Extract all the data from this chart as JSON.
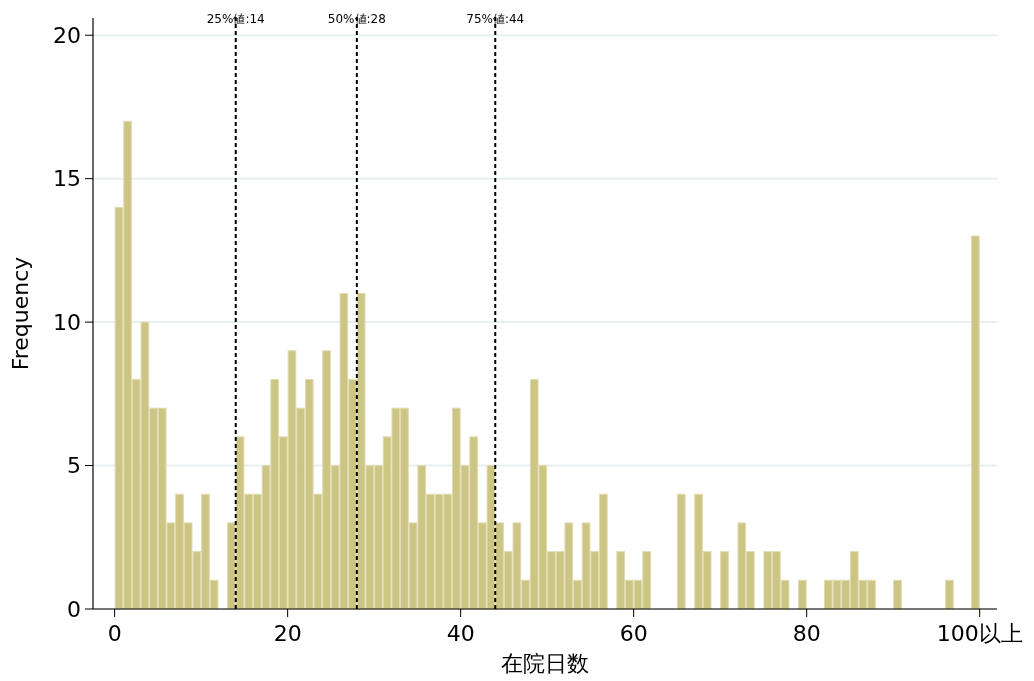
{
  "chart_data": {
    "type": "histogram",
    "xlabel": "在院日数",
    "ylabel": "Frequency",
    "bins": [
      0,
      1,
      2,
      3,
      4,
      5,
      6,
      7,
      8,
      9,
      10,
      11,
      12,
      13,
      14,
      15,
      16,
      17,
      18,
      19,
      20,
      21,
      22,
      23,
      24,
      25,
      26,
      27,
      28,
      29,
      30,
      31,
      32,
      33,
      34,
      35,
      36,
      37,
      38,
      39,
      40,
      41,
      42,
      43,
      44,
      45,
      46,
      47,
      48,
      49,
      50,
      51,
      52,
      53,
      54,
      55,
      56,
      57,
      58,
      59,
      60,
      61,
      62,
      63,
      64,
      65,
      66,
      67,
      68,
      69,
      70,
      71,
      72,
      73,
      74,
      75,
      76,
      77,
      78,
      79,
      80,
      81,
      82,
      83,
      84,
      85,
      86,
      87,
      88,
      89,
      90,
      91,
      92,
      93,
      94,
      95,
      96,
      97,
      98,
      99,
      100
    ],
    "values": [
      14,
      17,
      8,
      10,
      7,
      7,
      3,
      4,
      3,
      2,
      4,
      1,
      0,
      3,
      6,
      4,
      4,
      5,
      8,
      6,
      9,
      7,
      8,
      4,
      9,
      5,
      11,
      8,
      11,
      5,
      5,
      6,
      7,
      7,
      3,
      5,
      4,
      4,
      4,
      7,
      5,
      6,
      3,
      5,
      3,
      2,
      3,
      1,
      8,
      5,
      2,
      2,
      3,
      1,
      3,
      2,
      4,
      0,
      2,
      1,
      1,
      2,
      0,
      0,
      0,
      4,
      0,
      4,
      2,
      0,
      2,
      0,
      3,
      2,
      0,
      2,
      2,
      1,
      0,
      1,
      0,
      0,
      1,
      1,
      1,
      2,
      1,
      1,
      0,
      0,
      1,
      0,
      0,
      0,
      0,
      0,
      1,
      0,
      0,
      13
    ],
    "color": "#cdc584",
    "xlim": [
      -2.5,
      102
    ],
    "xticks": [
      0,
      20,
      40,
      60,
      80,
      {
        "value": 100,
        "label": "100以上"
      }
    ],
    "ylim": [
      0,
      20.6
    ],
    "yticks": [
      0,
      5,
      10,
      15,
      20
    ],
    "grid": "y",
    "ref_lines": [
      {
        "axis": "x",
        "value": 14,
        "label": "25%値:14",
        "line_style": "dashed",
        "color": "#000000"
      },
      {
        "axis": "x",
        "value": 28,
        "label": "50%値:28",
        "line_style": "dashed",
        "color": "#000000"
      },
      {
        "axis": "x",
        "value": 44,
        "label": "75%値:44",
        "line_style": "dashed",
        "color": "#000000"
      }
    ]
  }
}
